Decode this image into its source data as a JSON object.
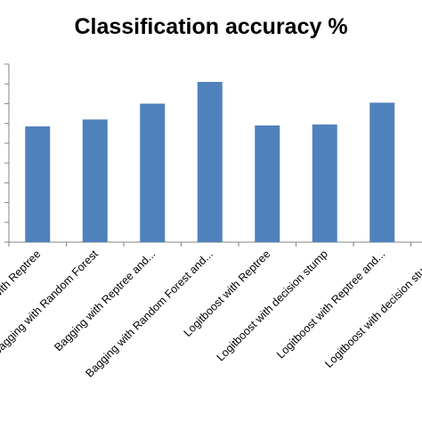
{
  "chart_data": {
    "type": "bar",
    "title": "Classification accuracy %",
    "xlabel": "",
    "ylabel": "",
    "categories": [
      "Simple with Reptree",
      "Bagging with Random Forest",
      "Bagging with Reptree and...",
      "Bagging with Random Forest and...",
      "Logitboost with Reptree",
      "Logitboost with decision stump",
      "Logitboost with Reptree and...",
      "Logitboost with decision stump..."
    ],
    "values": [
      58.5,
      62.0,
      70.0,
      81.0,
      59.0,
      59.5,
      70.5,
      null
    ],
    "ylim": [
      0,
      90
    ],
    "y_ticks": [
      0,
      10,
      20,
      30,
      40,
      50,
      60,
      70,
      80,
      90
    ],
    "y_tick_labels_visible": false,
    "grid": false,
    "legend": "none",
    "bar_color": "#4f81bd",
    "axis_color": "#868686"
  }
}
